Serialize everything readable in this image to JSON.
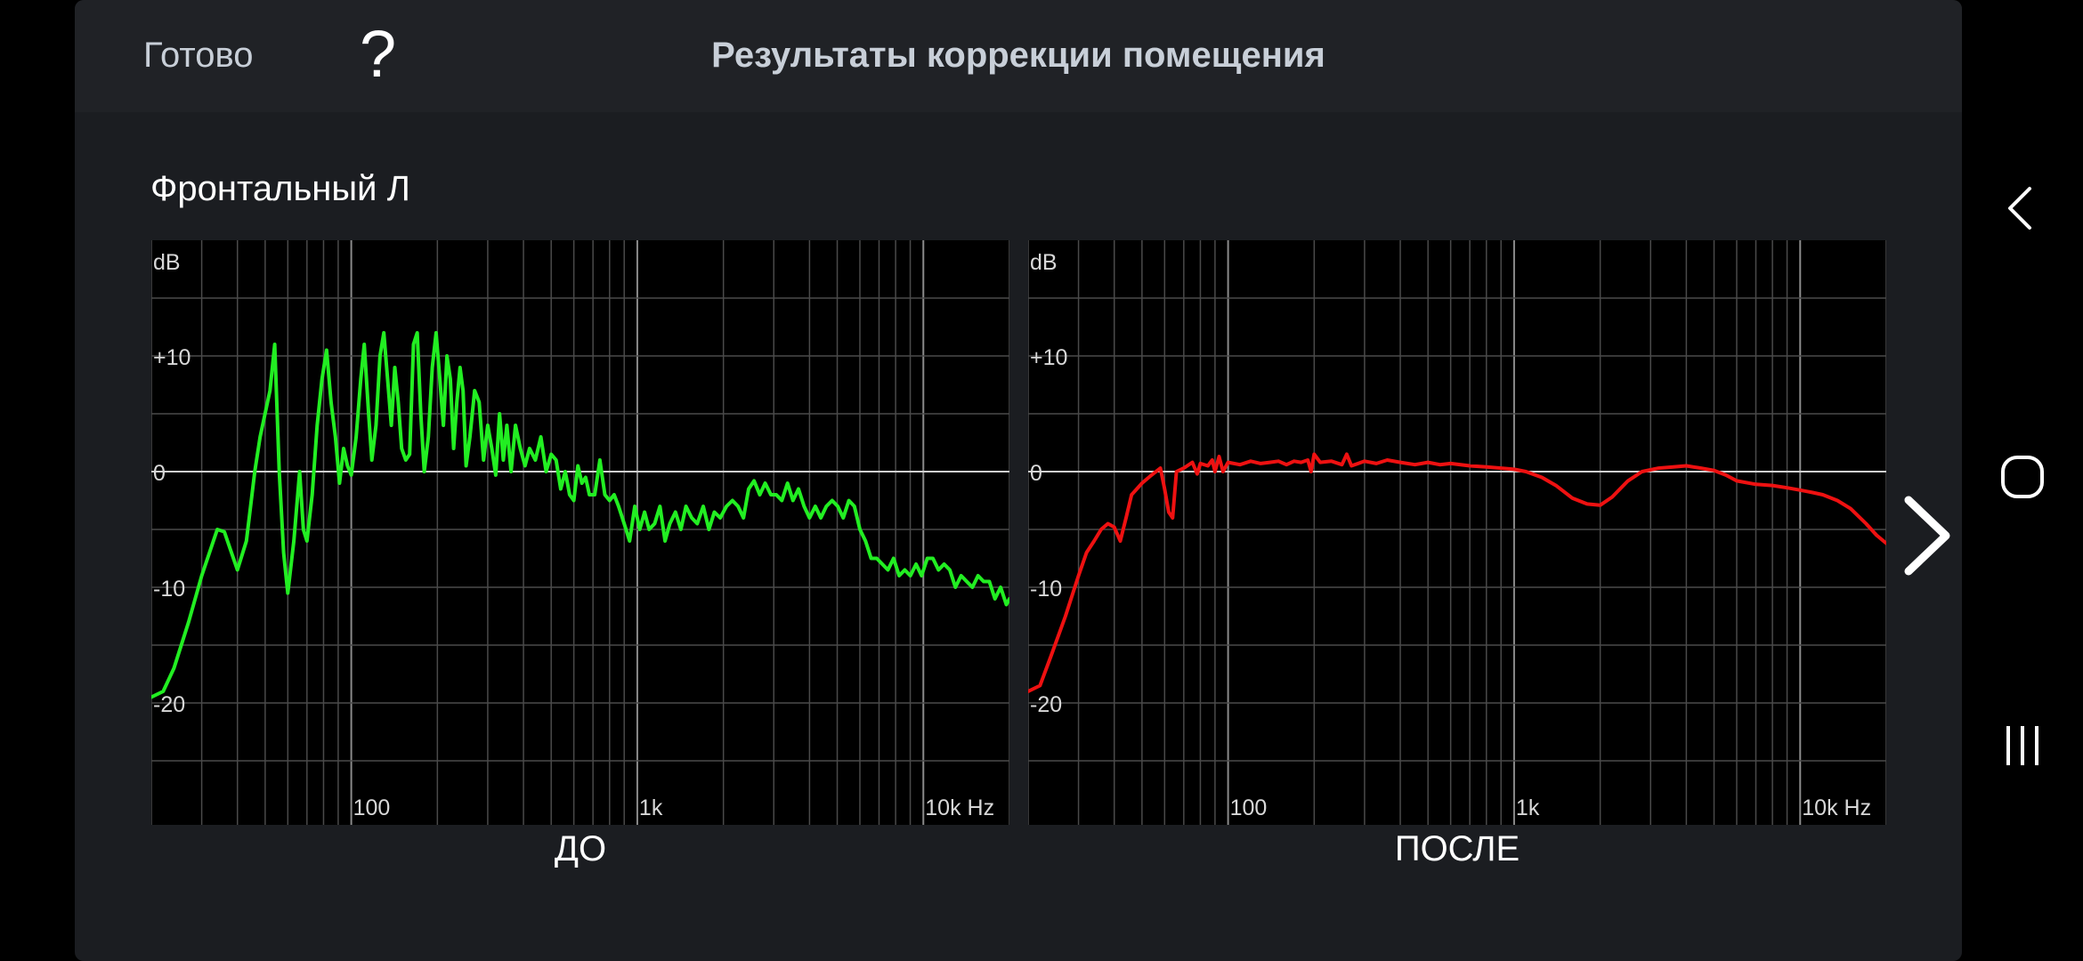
{
  "header": {
    "done_label": "Готово",
    "help_label": "?",
    "title": "Результаты коррекции помещения"
  },
  "channel_label": "Фронтальный Л",
  "charts_meta": {
    "y_unit": "dB",
    "x_unit_suffix": "Hz",
    "y_ticks": [
      "+10",
      "0",
      "-10",
      "-20"
    ],
    "x_ticks": [
      "100",
      "1k",
      "10k Hz"
    ]
  },
  "chart_data": [
    {
      "type": "line",
      "caption": "ДО",
      "color": "#22ee22",
      "ylabel": "dB",
      "xlabel": "Hz",
      "x_scale": "log",
      "xlim": [
        20,
        20000
      ],
      "ylim": [
        -30,
        20
      ],
      "grid": true,
      "points": [
        [
          20,
          -19.5
        ],
        [
          22,
          -19
        ],
        [
          24,
          -17
        ],
        [
          27,
          -13
        ],
        [
          30,
          -9
        ],
        [
          34,
          -5
        ],
        [
          36,
          -5.2
        ],
        [
          40,
          -8.5
        ],
        [
          43,
          -6
        ],
        [
          46,
          0
        ],
        [
          48,
          3
        ],
        [
          52,
          7
        ],
        [
          54,
          11
        ],
        [
          56,
          0
        ],
        [
          58,
          -7
        ],
        [
          60,
          -10.5
        ],
        [
          63,
          -6
        ],
        [
          66,
          0
        ],
        [
          68,
          -5
        ],
        [
          70,
          -6
        ],
        [
          73,
          -2
        ],
        [
          76,
          4
        ],
        [
          79,
          8
        ],
        [
          82,
          10.5
        ],
        [
          85,
          6
        ],
        [
          88,
          3
        ],
        [
          91,
          -1
        ],
        [
          94,
          2
        ],
        [
          97,
          0.5
        ],
        [
          100,
          -0.3
        ],
        [
          104,
          3
        ],
        [
          108,
          8
        ],
        [
          111,
          11
        ],
        [
          115,
          5
        ],
        [
          118,
          1
        ],
        [
          122,
          4
        ],
        [
          126,
          10
        ],
        [
          130,
          12
        ],
        [
          134,
          8
        ],
        [
          138,
          4
        ],
        [
          142,
          9
        ],
        [
          146,
          6
        ],
        [
          150,
          2
        ],
        [
          155,
          1
        ],
        [
          160,
          1.5
        ],
        [
          165,
          11
        ],
        [
          170,
          12
        ],
        [
          175,
          5
        ],
        [
          180,
          0
        ],
        [
          186,
          3
        ],
        [
          192,
          9
        ],
        [
          198,
          12
        ],
        [
          204,
          8
        ],
        [
          210,
          4
        ],
        [
          216,
          10
        ],
        [
          222,
          8
        ],
        [
          228,
          2
        ],
        [
          234,
          6
        ],
        [
          240,
          9
        ],
        [
          246,
          7
        ],
        [
          252,
          0.5
        ],
        [
          260,
          3
        ],
        [
          270,
          7
        ],
        [
          280,
          6
        ],
        [
          290,
          1
        ],
        [
          300,
          4
        ],
        [
          310,
          2
        ],
        [
          320,
          -0.3
        ],
        [
          330,
          5
        ],
        [
          340,
          1
        ],
        [
          350,
          4
        ],
        [
          362,
          0
        ],
        [
          375,
          4
        ],
        [
          390,
          2
        ],
        [
          405,
          0.5
        ],
        [
          420,
          2
        ],
        [
          440,
          1
        ],
        [
          460,
          3
        ],
        [
          480,
          0
        ],
        [
          500,
          1.5
        ],
        [
          520,
          1
        ],
        [
          540,
          -1.5
        ],
        [
          560,
          0
        ],
        [
          580,
          -2
        ],
        [
          600,
          -2.5
        ],
        [
          620,
          0.5
        ],
        [
          640,
          -1
        ],
        [
          660,
          -0.5
        ],
        [
          680,
          -2
        ],
        [
          710,
          -2
        ],
        [
          740,
          1
        ],
        [
          770,
          -2
        ],
        [
          800,
          -2.5
        ],
        [
          830,
          -2
        ],
        [
          860,
          -3
        ],
        [
          900,
          -4.5
        ],
        [
          940,
          -6
        ],
        [
          980,
          -3
        ],
        [
          1020,
          -5
        ],
        [
          1060,
          -3.5
        ],
        [
          1100,
          -5
        ],
        [
          1150,
          -4.5
        ],
        [
          1200,
          -3
        ],
        [
          1250,
          -6
        ],
        [
          1300,
          -4.5
        ],
        [
          1360,
          -3.5
        ],
        [
          1420,
          -5
        ],
        [
          1480,
          -3
        ],
        [
          1550,
          -4
        ],
        [
          1620,
          -4.5
        ],
        [
          1700,
          -3
        ],
        [
          1780,
          -5
        ],
        [
          1860,
          -3.5
        ],
        [
          1950,
          -4
        ],
        [
          2050,
          -3
        ],
        [
          2150,
          -2.5
        ],
        [
          2250,
          -3
        ],
        [
          2350,
          -4
        ],
        [
          2450,
          -1.5
        ],
        [
          2560,
          -0.8
        ],
        [
          2680,
          -2
        ],
        [
          2800,
          -1
        ],
        [
          2930,
          -2
        ],
        [
          3060,
          -2
        ],
        [
          3200,
          -2.5
        ],
        [
          3350,
          -1
        ],
        [
          3500,
          -2.5
        ],
        [
          3660,
          -1.5
        ],
        [
          3830,
          -3
        ],
        [
          4000,
          -4
        ],
        [
          4190,
          -3
        ],
        [
          4380,
          -4
        ],
        [
          4580,
          -3
        ],
        [
          4800,
          -2.5
        ],
        [
          5020,
          -3
        ],
        [
          5250,
          -4
        ],
        [
          5490,
          -2.5
        ],
        [
          5740,
          -3
        ],
        [
          6000,
          -5
        ],
        [
          6280,
          -6
        ],
        [
          6570,
          -7.5
        ],
        [
          6870,
          -7.5
        ],
        [
          7190,
          -8
        ],
        [
          7520,
          -8.5
        ],
        [
          7870,
          -7.5
        ],
        [
          8230,
          -9
        ],
        [
          8610,
          -8.5
        ],
        [
          9010,
          -9
        ],
        [
          9430,
          -8
        ],
        [
          9860,
          -9
        ],
        [
          10320,
          -7.5
        ],
        [
          10800,
          -7.5
        ],
        [
          11300,
          -8.5
        ],
        [
          11820,
          -8
        ],
        [
          12370,
          -8.5
        ],
        [
          12950,
          -10
        ],
        [
          13550,
          -9
        ],
        [
          14180,
          -9.5
        ],
        [
          14840,
          -10
        ],
        [
          15530,
          -9
        ],
        [
          16250,
          -9.5
        ],
        [
          17010,
          -9.5
        ],
        [
          17800,
          -11
        ],
        [
          18630,
          -10
        ],
        [
          19500,
          -11.5
        ],
        [
          20000,
          -11
        ]
      ]
    },
    {
      "type": "line",
      "caption": "ПОСЛЕ",
      "color": "#ee1111",
      "ylabel": "dB",
      "xlabel": "Hz",
      "x_scale": "log",
      "xlim": [
        20,
        20000
      ],
      "ylim": [
        -30,
        20
      ],
      "grid": true,
      "points": [
        [
          20,
          -19
        ],
        [
          22,
          -18.5
        ],
        [
          24,
          -16
        ],
        [
          27,
          -12.5
        ],
        [
          30,
          -9
        ],
        [
          32,
          -7
        ],
        [
          34,
          -6
        ],
        [
          36,
          -5
        ],
        [
          38,
          -4.5
        ],
        [
          40,
          -4.8
        ],
        [
          42,
          -6
        ],
        [
          44,
          -4
        ],
        [
          46,
          -2
        ],
        [
          50,
          -1
        ],
        [
          54,
          -0.3
        ],
        [
          58,
          0.3
        ],
        [
          60,
          -1.5
        ],
        [
          62,
          -3.5
        ],
        [
          64,
          -4
        ],
        [
          66,
          0
        ],
        [
          70,
          0.3
        ],
        [
          75,
          0.8
        ],
        [
          78,
          -0.2
        ],
        [
          80,
          0.7
        ],
        [
          85,
          0.5
        ],
        [
          88,
          1
        ],
        [
          90,
          0
        ],
        [
          93,
          1.3
        ],
        [
          96,
          0
        ],
        [
          100,
          0.8
        ],
        [
          110,
          0.6
        ],
        [
          120,
          0.9
        ],
        [
          130,
          0.7
        ],
        [
          140,
          0.8
        ],
        [
          150,
          0.9
        ],
        [
          160,
          0.6
        ],
        [
          170,
          0.9
        ],
        [
          180,
          0.8
        ],
        [
          190,
          1
        ],
        [
          195,
          0
        ],
        [
          200,
          1.5
        ],
        [
          210,
          0.8
        ],
        [
          230,
          0.9
        ],
        [
          250,
          0.6
        ],
        [
          260,
          1.5
        ],
        [
          270,
          0.5
        ],
        [
          300,
          0.9
        ],
        [
          330,
          0.7
        ],
        [
          360,
          1
        ],
        [
          400,
          0.8
        ],
        [
          450,
          0.6
        ],
        [
          500,
          0.8
        ],
        [
          550,
          0.6
        ],
        [
          600,
          0.7
        ],
        [
          700,
          0.5
        ],
        [
          800,
          0.4
        ],
        [
          900,
          0.3
        ],
        [
          1000,
          0.2
        ],
        [
          1100,
          0
        ],
        [
          1250,
          -0.5
        ],
        [
          1400,
          -1.2
        ],
        [
          1600,
          -2.3
        ],
        [
          1800,
          -2.8
        ],
        [
          2000,
          -2.9
        ],
        [
          2200,
          -2.2
        ],
        [
          2500,
          -0.8
        ],
        [
          2800,
          0
        ],
        [
          3200,
          0.3
        ],
        [
          3600,
          0.4
        ],
        [
          4000,
          0.5
        ],
        [
          4500,
          0.3
        ],
        [
          5000,
          0.1
        ],
        [
          5500,
          -0.3
        ],
        [
          6000,
          -0.8
        ],
        [
          7000,
          -1.1
        ],
        [
          8000,
          -1.2
        ],
        [
          9000,
          -1.4
        ],
        [
          10000,
          -1.6
        ],
        [
          11000,
          -1.8
        ],
        [
          12000,
          -2
        ],
        [
          13500,
          -2.5
        ],
        [
          15000,
          -3.2
        ],
        [
          17000,
          -4.5
        ],
        [
          18500,
          -5.5
        ],
        [
          20000,
          -6.2
        ]
      ]
    }
  ]
}
